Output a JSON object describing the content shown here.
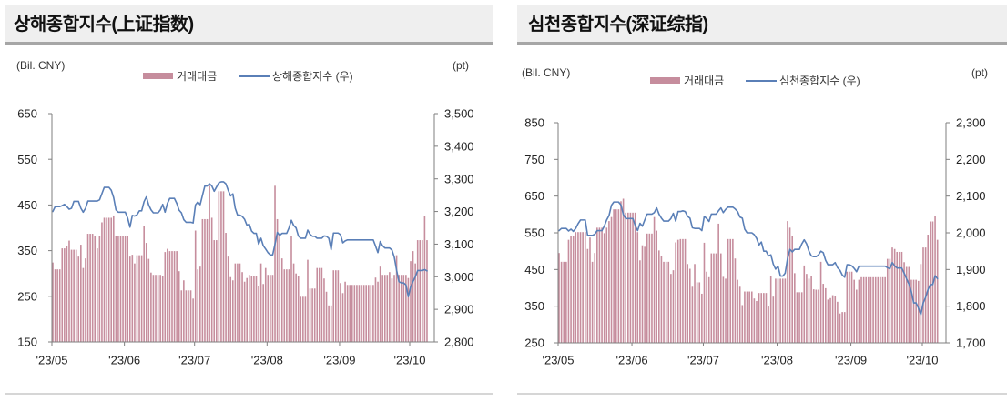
{
  "chart_data": [
    {
      "type": "bar+line",
      "title": "상해종합지수(上证指数)",
      "ylabel_left": "(Bil. CNY)",
      "ylabel_right": "(pt)",
      "legend_position": "top",
      "grid": false,
      "legend": [
        {
          "label": "거래대금",
          "type": "bar"
        },
        {
          "label": "상해종합지수 (우)",
          "type": "line"
        }
      ],
      "x_ticks": [
        {
          "label": "'23/05",
          "index": 0
        },
        {
          "label": "'23/06",
          "index": 31
        },
        {
          "label": "'23/07",
          "index": 61
        },
        {
          "label": "'23/08",
          "index": 92
        },
        {
          "label": "'23/09",
          "index": 123
        },
        {
          "label": "'23/10",
          "index": 153
        }
      ],
      "ylim_left": [
        150,
        650
      ],
      "yticks_left": [
        {
          "value": 650,
          "label": "650"
        },
        {
          "value": 550,
          "label": "550"
        },
        {
          "value": 450,
          "label": "450"
        },
        {
          "value": 350,
          "label": "350"
        },
        {
          "value": 250,
          "label": "250"
        },
        {
          "value": 150,
          "label": "150"
        }
      ],
      "ylim_right": [
        2800,
        3500
      ],
      "yticks_right": [
        {
          "value": 3500,
          "label": "3,500"
        },
        {
          "value": 3400,
          "label": "3,400"
        },
        {
          "value": 3300,
          "label": "3,300"
        },
        {
          "value": 3200,
          "label": "3,200"
        },
        {
          "value": 3100,
          "label": "3,100"
        },
        {
          "value": 3000,
          "label": "3,000"
        },
        {
          "value": 2900,
          "label": "2,900"
        },
        {
          "value": 2800,
          "label": "2,800"
        }
      ],
      "series": [
        {
          "name": "거래대금",
          "type": "bar",
          "axis": "left",
          "color": "#c68d9d",
          "values": [
            324,
            309,
            309,
            309,
            355,
            355,
            361,
            372,
            352,
            352,
            352,
            337,
            363,
            312,
            333,
            387,
            387,
            387,
            382,
            355,
            382,
            412,
            422,
            422,
            422,
            422,
            427,
            382,
            382,
            382,
            382,
            382,
            382,
            337,
            341,
            322,
            340,
            340,
            340,
            403,
            367,
            332,
            302,
            297,
            297,
            297,
            297,
            294,
            347,
            354,
            349,
            349,
            349,
            349,
            305,
            263,
            285,
            263,
            263,
            263,
            245,
            394,
            309,
            315,
            419,
            419,
            419,
            492,
            422,
            373,
            373,
            480,
            480,
            480,
            389,
            337,
            292,
            285,
            322,
            322,
            322,
            303,
            282,
            290,
            297,
            294,
            294,
            294,
            272,
            322,
            277,
            312,
            297,
            297,
            297,
            492,
            419,
            382,
            333,
            309,
            309,
            309,
            382,
            322,
            300,
            294,
            249,
            249,
            249,
            330,
            267,
            267,
            267,
            312,
            312,
            312,
            289,
            260,
            230,
            230,
            307,
            307,
            307,
            279,
            257,
            282,
            275,
            275,
            275,
            275,
            275,
            275,
            275,
            275,
            275,
            275,
            275,
            275,
            291,
            282,
            315,
            297,
            297,
            297,
            303,
            289,
            297,
            340,
            297,
            297,
            297,
            297,
            290,
            327,
            349,
            322,
            373,
            373,
            373,
            425,
            373
          ]
        },
        {
          "name": "상해종합지수 (우)",
          "type": "line",
          "axis": "right",
          "color": "#5a7fb7",
          "values": [
            3200,
            3215,
            3215,
            3215,
            3218,
            3222,
            3215,
            3207,
            3210,
            3231,
            3231,
            3231,
            3210,
            3198,
            3210,
            3232,
            3232,
            3232,
            3232,
            3232,
            3236,
            3255,
            3274,
            3274,
            3274,
            3265,
            3243,
            3205,
            3198,
            3198,
            3198,
            3198,
            3180,
            3152,
            3188,
            3186,
            3190,
            3202,
            3202,
            3230,
            3245,
            3220,
            3205,
            3196,
            3196,
            3196,
            3205,
            3222,
            3198,
            3225,
            3240,
            3240,
            3240,
            3225,
            3204,
            3196,
            3175,
            3167,
            3167,
            3167,
            3165,
            3220,
            3229,
            3221,
            3250,
            3278,
            3278,
            3285,
            3278,
            3262,
            3275,
            3288,
            3291,
            3291,
            3285,
            3265,
            3248,
            3254,
            3210,
            3189,
            3189,
            3185,
            3176,
            3158,
            3161,
            3140,
            3133,
            3133,
            3100,
            3118,
            3095,
            3085,
            3074,
            3067,
            3067,
            3100,
            3136,
            3127,
            3133,
            3133,
            3133,
            3150,
            3173,
            3157,
            3150,
            3125,
            3118,
            3118,
            3118,
            3143,
            3130,
            3124,
            3124,
            3118,
            3118,
            3118,
            3125,
            3124,
            3118,
            3083,
            3134,
            3134,
            3134,
            3129,
            3104,
            3110,
            3113,
            3113,
            3113,
            3113,
            3113,
            3113,
            3113,
            3113,
            3113,
            3113,
            3113,
            3113,
            3094,
            3074,
            3108,
            3095,
            3088,
            3088,
            3088,
            3082,
            3060,
            3020,
            2985,
            2981,
            2981,
            2975,
            2939,
            2969,
            2985,
            3000,
            3019,
            3019,
            3019,
            3022,
            3018
          ]
        }
      ]
    },
    {
      "type": "bar+line",
      "title": "심천종합지수(深证综指)",
      "ylabel_left": "(Bil. CNY)",
      "ylabel_right": "(pt)",
      "legend_position": "top",
      "grid": false,
      "legend": [
        {
          "label": "거래대금",
          "type": "bar"
        },
        {
          "label": "심천종합지수 (우)",
          "type": "line"
        }
      ],
      "x_ticks": [
        {
          "label": "'23/05",
          "index": 0
        },
        {
          "label": "'23/06",
          "index": 31
        },
        {
          "label": "'23/07",
          "index": 61
        },
        {
          "label": "'23/08",
          "index": 92
        },
        {
          "label": "'23/09",
          "index": 123
        },
        {
          "label": "'23/10",
          "index": 153
        }
      ],
      "ylim_left": [
        250,
        850
      ],
      "yticks_left": [
        {
          "value": 850,
          "label": "850"
        },
        {
          "value": 750,
          "label": "750"
        },
        {
          "value": 650,
          "label": "650"
        },
        {
          "value": 550,
          "label": "550"
        },
        {
          "value": 450,
          "label": "450"
        },
        {
          "value": 350,
          "label": "350"
        },
        {
          "value": 250,
          "label": "250"
        }
      ],
      "ylim_right": [
        1700,
        2300
      ],
      "yticks_right": [
        {
          "value": 2300,
          "label": "2,300"
        },
        {
          "value": 2200,
          "label": "2,200"
        },
        {
          "value": 2100,
          "label": "2,100"
        },
        {
          "value": 2000,
          "label": "2,000"
        },
        {
          "value": 1900,
          "label": "1,900"
        },
        {
          "value": 1800,
          "label": "1,800"
        },
        {
          "value": 1700,
          "label": "1,700"
        }
      ],
      "series": [
        {
          "name": "거래대금",
          "type": "bar",
          "axis": "left",
          "color": "#c68d9d",
          "values": [
            495,
            471,
            471,
            471,
            531,
            541,
            541,
            552,
            552,
            552,
            552,
            552,
            506,
            537,
            471,
            495,
            564,
            564,
            564,
            549,
            564,
            582,
            593,
            614,
            614,
            614,
            636,
            643,
            605,
            605,
            605,
            605,
            605,
            552,
            475,
            516,
            512,
            548,
            548,
            548,
            593,
            556,
            502,
            486,
            471,
            471,
            471,
            438,
            448,
            524,
            531,
            533,
            533,
            533,
            465,
            452,
            403,
            465,
            415,
            415,
            384,
            523,
            444,
            429,
            494,
            494,
            494,
            575,
            494,
            430,
            425,
            533,
            533,
            533,
            480,
            422,
            403,
            353,
            390,
            390,
            390,
            390,
            371,
            364,
            386,
            386,
            386,
            386,
            349,
            433,
            376,
            425,
            425,
            425,
            425,
            425,
            582,
            564,
            541,
            440,
            388,
            388,
            388,
            461,
            438,
            425,
            432,
            396,
            395,
            395,
            471,
            411,
            399,
            368,
            372,
            380,
            378,
            362,
            330,
            334,
            334,
            444,
            444,
            444,
            422,
            395,
            422,
            429,
            429,
            429,
            429,
            429,
            429,
            429,
            429,
            429,
            429,
            429,
            479,
            479,
            510,
            506,
            498,
            498,
            498,
            470,
            457,
            457,
            422,
            422,
            422,
            419,
            465,
            510,
            510,
            545,
            581,
            581,
            595,
            531
          ]
        },
        {
          "name": "심천종합지수 (우)",
          "type": "line",
          "axis": "right",
          "color": "#5a7fb7",
          "values": [
            2006,
            2012,
            2012,
            2012,
            2005,
            2010,
            2004,
            2012,
            2025,
            2035,
            2035,
            2035,
            1993,
            1993,
            1993,
            1996,
            2006,
            2006,
            2006,
            2018,
            2035,
            2047,
            2075,
            2084,
            2084,
            2084,
            2076,
            2050,
            2039,
            2039,
            2039,
            2039,
            2020,
            2006,
            2026,
            2018,
            2035,
            2051,
            2051,
            2051,
            2055,
            2068,
            2051,
            2040,
            2032,
            2032,
            2032,
            2039,
            2053,
            2032,
            2058,
            2058,
            2060,
            2058,
            2045,
            2040,
            2014,
            2012,
            2012,
            2012,
            2006,
            2045,
            2039,
            2031,
            2051,
            2051,
            2051,
            2060,
            2068,
            2055,
            2064,
            2070,
            2070,
            2070,
            2065,
            2058,
            2043,
            2040,
            2010,
            2000,
            2000,
            2000,
            1995,
            1985,
            1967,
            1975,
            1950,
            1950,
            1937,
            1940,
            1915,
            1901,
            1909,
            1882,
            1882,
            1890,
            1930,
            1955,
            1948,
            1955,
            1955,
            1955,
            1970,
            1981,
            1970,
            1950,
            1937,
            1935,
            1935,
            1940,
            1950,
            1946,
            1925,
            1913,
            1913,
            1913,
            1919,
            1905,
            1898,
            1885,
            1879,
            1913,
            1913,
            1910,
            1903,
            1894,
            1909,
            1909,
            1909,
            1909,
            1909,
            1909,
            1909,
            1909,
            1909,
            1909,
            1909,
            1909,
            1905,
            1902,
            1919,
            1910,
            1904,
            1904,
            1904,
            1890,
            1875,
            1860,
            1840,
            1809,
            1809,
            1795,
            1777,
            1809,
            1824,
            1845,
            1859,
            1859,
            1883,
            1875
          ]
        }
      ]
    }
  ]
}
